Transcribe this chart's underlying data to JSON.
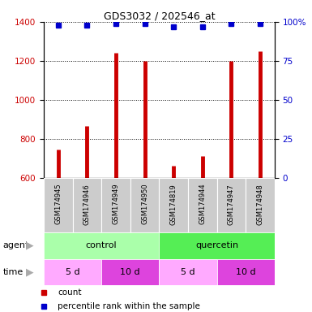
{
  "title": "GDS3032 / 202546_at",
  "samples": [
    "GSM174945",
    "GSM174946",
    "GSM174949",
    "GSM174950",
    "GSM174819",
    "GSM174944",
    "GSM174947",
    "GSM174948"
  ],
  "counts": [
    745,
    865,
    1240,
    1200,
    660,
    710,
    1200,
    1250
  ],
  "percentiles": [
    98,
    98,
    99,
    99,
    97,
    97,
    99,
    99
  ],
  "ylim_left": [
    600,
    1400
  ],
  "ylim_right": [
    0,
    100
  ],
  "yticks_left": [
    600,
    800,
    1000,
    1200,
    1400
  ],
  "yticks_right": [
    0,
    25,
    50,
    75,
    100
  ],
  "bar_color": "#cc0000",
  "dot_color": "#0000cc",
  "agent_control_color": "#aaffaa",
  "agent_quercetin_color": "#55ee55",
  "time_5d_color": "#ffaaff",
  "time_10d_color": "#dd44dd",
  "sample_bg_color": "#cccccc",
  "agent_label": "agent",
  "time_label": "time",
  "control_label": "control",
  "quercetin_label": "quercetin",
  "time_5d": "5 d",
  "time_10d": "10 d",
  "legend_count": "count",
  "legend_percentile": "percentile rank within the sample",
  "arrow_color": "#aaaaaa"
}
